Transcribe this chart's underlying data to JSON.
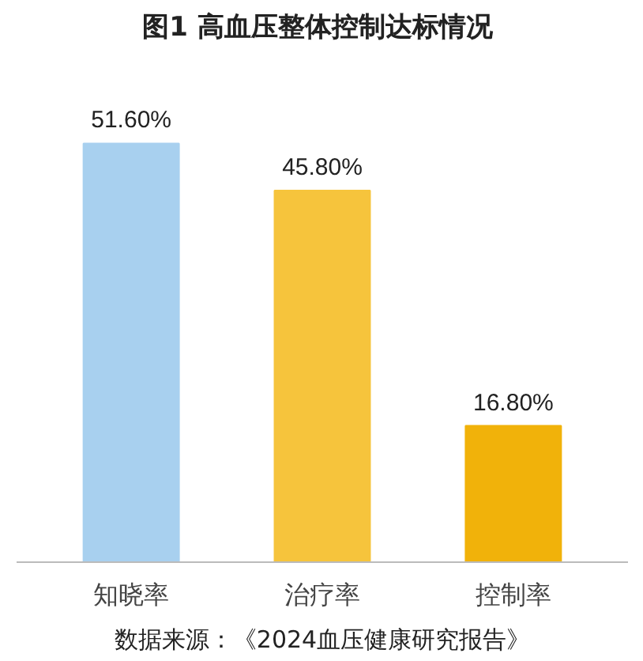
{
  "chart_data": {
    "type": "bar",
    "title": "图1  高血压整体控制达标情况",
    "categories": [
      "知晓率",
      "治疗率",
      "控制率"
    ],
    "values": [
      51.6,
      45.8,
      16.8
    ],
    "value_labels": [
      "51.60%",
      "45.80%",
      "16.80%"
    ],
    "colors": [
      "#a8d0ef",
      "#f6c43c",
      "#f1b20a"
    ],
    "grid": false,
    "annotations": [
      "数据来源：《2024血压健康研究报告》"
    ]
  }
}
